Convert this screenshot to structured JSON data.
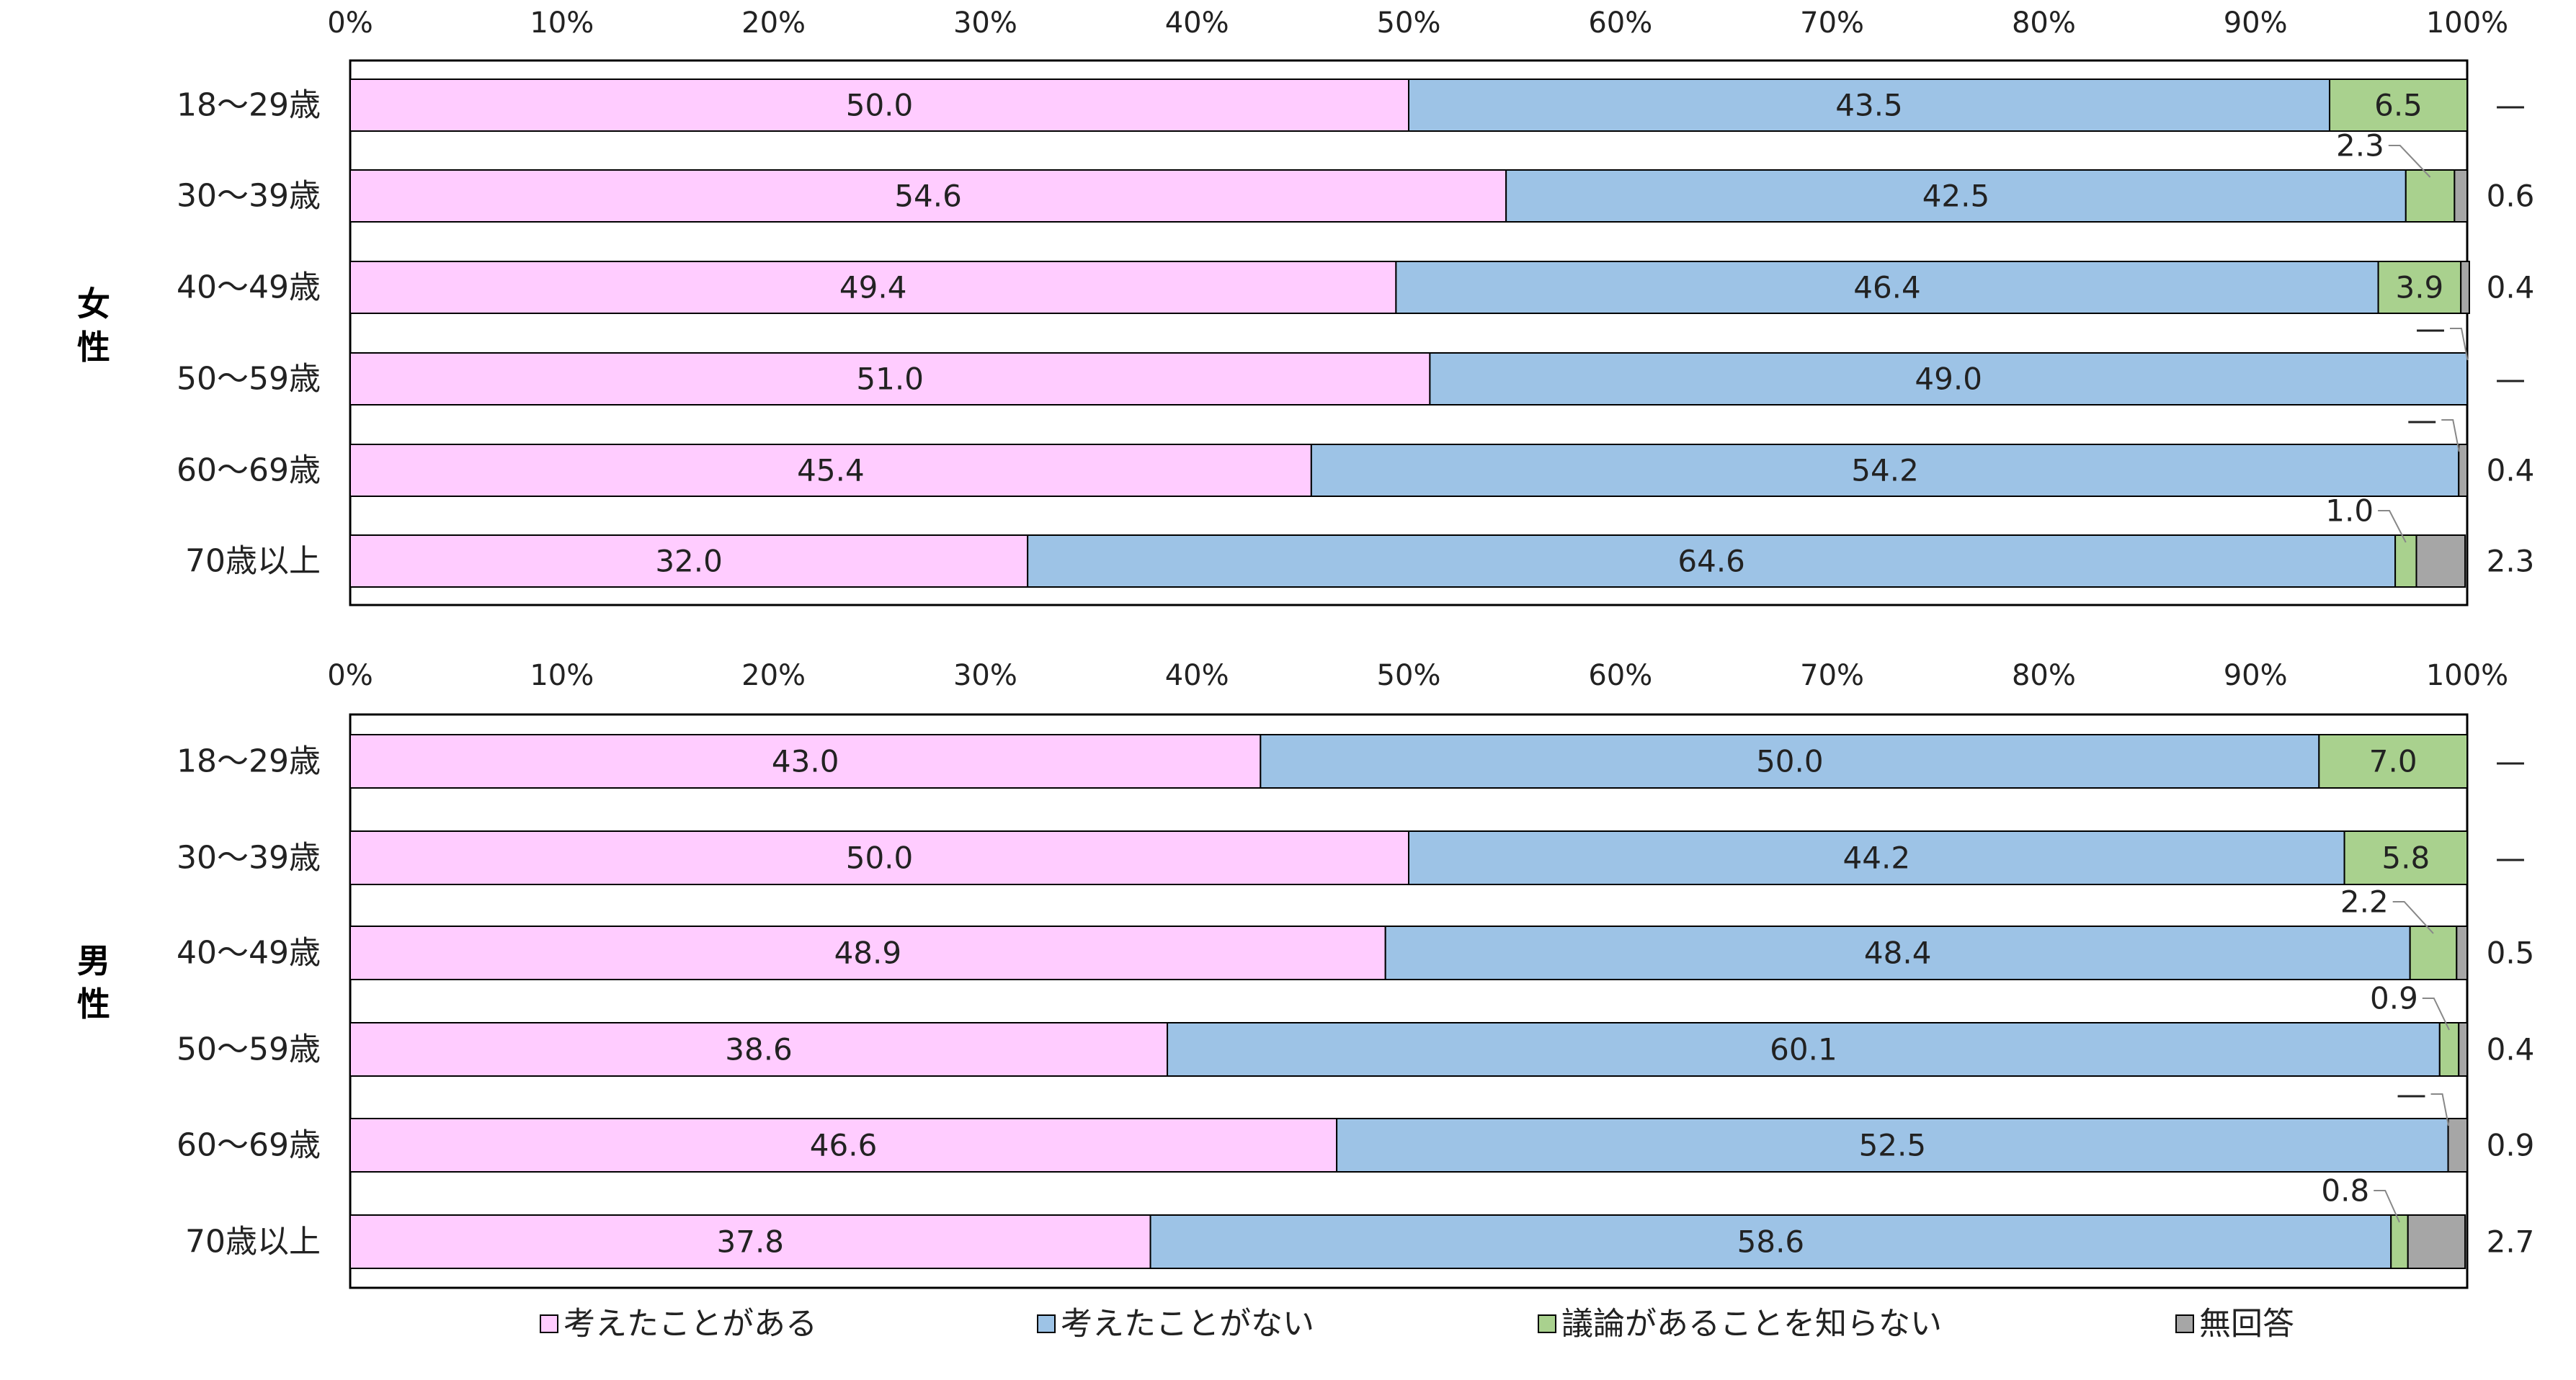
{
  "chart_data": [
    {
      "type": "bar",
      "orientation": "horizontal",
      "stacked": true,
      "group_label": "女性",
      "xlim": [
        0,
        100
      ],
      "x_ticks": [
        "0%",
        "10%",
        "20%",
        "30%",
        "40%",
        "50%",
        "60%",
        "70%",
        "80%",
        "90%",
        "100%"
      ],
      "categories": [
        "18〜29歳",
        "30〜39歳",
        "40〜49歳",
        "50〜59歳",
        "60〜69歳",
        "70歳以上"
      ],
      "series": [
        {
          "name": "考えたことがある",
          "values": [
            50.0,
            54.6,
            49.4,
            51.0,
            45.4,
            32.0
          ]
        },
        {
          "name": "考えたことがない",
          "values": [
            43.5,
            42.5,
            46.4,
            49.0,
            54.2,
            64.6
          ]
        },
        {
          "name": "議論があることを知らない",
          "values": [
            6.5,
            2.3,
            3.9,
            0,
            0,
            1.0
          ]
        },
        {
          "name": "無回答",
          "values": [
            0,
            0.6,
            0.4,
            0,
            0.4,
            2.3
          ]
        }
      ],
      "value_labels": [
        [
          "50.0",
          "54.6",
          "49.4",
          "51.0",
          "45.4",
          "32.0"
        ],
        [
          "43.5",
          "42.5",
          "46.4",
          "49.0",
          "54.2",
          "64.6"
        ],
        [
          "6.5",
          "2.3",
          "3.9",
          "—",
          "—",
          "1.0"
        ],
        [
          "—",
          "0.6",
          "0.4",
          "—",
          "0.4",
          "2.3"
        ]
      ]
    },
    {
      "type": "bar",
      "orientation": "horizontal",
      "stacked": true,
      "group_label": "男性",
      "xlim": [
        0,
        100
      ],
      "x_ticks": [
        "0%",
        "10%",
        "20%",
        "30%",
        "40%",
        "50%",
        "60%",
        "70%",
        "80%",
        "90%",
        "100%"
      ],
      "categories": [
        "18〜29歳",
        "30〜39歳",
        "40〜49歳",
        "50〜59歳",
        "60〜69歳",
        "70歳以上"
      ],
      "series": [
        {
          "name": "考えたことがある",
          "values": [
            43.0,
            50.0,
            48.9,
            38.6,
            46.6,
            37.8
          ]
        },
        {
          "name": "考えたことがない",
          "values": [
            50.0,
            44.2,
            48.4,
            60.1,
            52.5,
            58.6
          ]
        },
        {
          "name": "議論があることを知らない",
          "values": [
            7.0,
            5.8,
            2.2,
            0.9,
            0,
            0.8
          ]
        },
        {
          "name": "無回答",
          "values": [
            0,
            0,
            0.5,
            0.4,
            0.9,
            2.7
          ]
        }
      ],
      "value_labels": [
        [
          "43.0",
          "50.0",
          "48.9",
          "38.6",
          "46.6",
          "37.8"
        ],
        [
          "50.0",
          "44.2",
          "48.4",
          "60.1",
          "52.5",
          "58.6"
        ],
        [
          "7.0",
          "5.8",
          "2.2",
          "0.9",
          "—",
          "0.8"
        ],
        [
          "—",
          "—",
          "0.5",
          "0.4",
          "0.9",
          "2.7"
        ]
      ]
    }
  ],
  "legend": [
    {
      "label": "考えたことがある",
      "color": "#ffccff"
    },
    {
      "label": "考えたことがない",
      "color": "#9dc3e6"
    },
    {
      "label": "議論があることを知らない",
      "color": "#a9d18e"
    },
    {
      "label": "無回答",
      "color": "#a6a6a6"
    }
  ],
  "colors": [
    "#ffccff",
    "#9dc3e6",
    "#a9d18e",
    "#a6a6a6"
  ]
}
